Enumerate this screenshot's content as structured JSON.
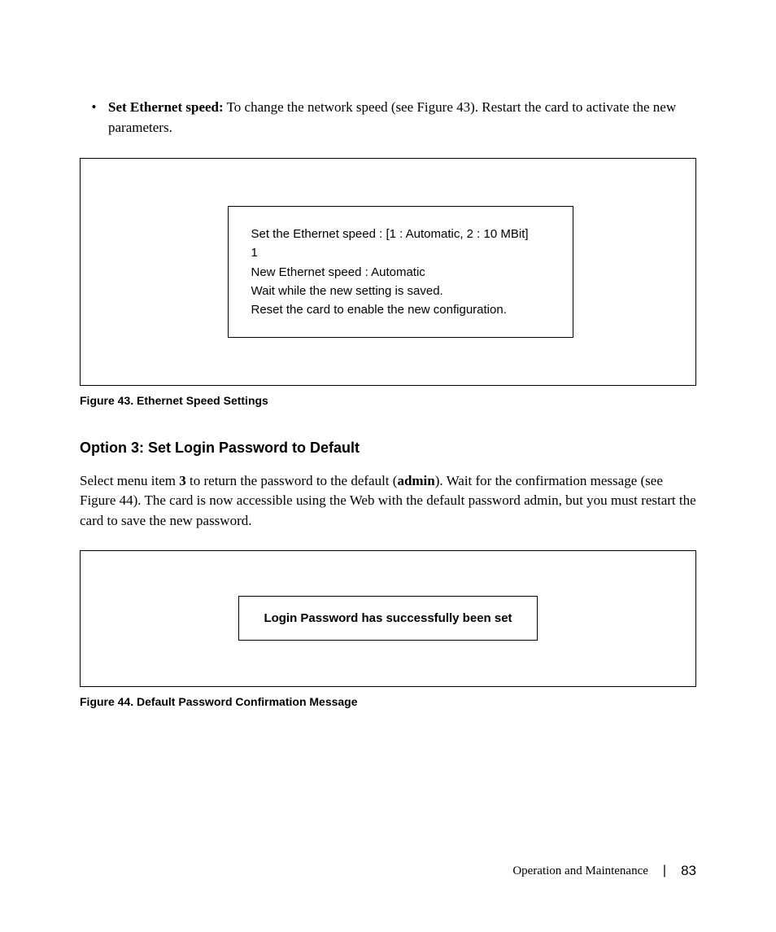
{
  "bullet": {
    "symbol": "•",
    "lead_bold": "Set Ethernet speed:",
    "text_rest": " To change the network speed (see Figure 43). Restart the card to activate the new parameters."
  },
  "figure43": {
    "lines": [
      "Set the Ethernet speed : [1 : Automatic, 2 : 10 MBit]",
      "1",
      "New Ethernet speed : Automatic",
      "Wait while the new setting is saved.",
      "Reset the card to enable the new configuration."
    ],
    "caption": "Figure 43. Ethernet Speed Settings"
  },
  "section": {
    "heading": "Option 3: Set Login Password to Default",
    "body_pre": "Select menu item ",
    "body_bold1": "3",
    "body_mid": " to return the password to the default (",
    "body_bold2": "admin",
    "body_post": "). Wait for the confirmation message (see Figure 44). The card is now accessible using the Web with the default password admin, but you must restart the card to save the new password."
  },
  "figure44": {
    "message": "Login Password has successfully been set",
    "caption": "Figure 44. Default Password Confirmation Message"
  },
  "footer": {
    "section": "Operation and Maintenance",
    "separator": "|",
    "page": "83"
  },
  "styling": {
    "page_bg": "#ffffff",
    "text_color": "#000000",
    "border_color": "#000000",
    "body_font": "Georgia, serif",
    "sans_font": "Arial, Helvetica, sans-serif",
    "body_fontsize": 17,
    "caption_fontsize": 14,
    "heading_fontsize": 18,
    "inner_fontsize": 15,
    "outer_box1_height": 280,
    "inner_box1_width": 425,
    "outer_box2_height": 168,
    "border_width": 1.5
  }
}
